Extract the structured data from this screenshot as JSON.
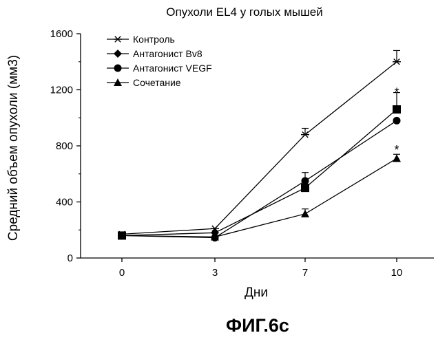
{
  "figure_label": "ФИГ.6с",
  "chart_data": {
    "type": "line",
    "title": "Опухоли EL4 у голых мышей",
    "xlabel": "Дни",
    "ylabel": "Средний объем опухоли (мм3)",
    "x_ticks": [
      0,
      3,
      7,
      10
    ],
    "y_ticks": [
      0,
      400,
      800,
      1200,
      1600
    ],
    "ylim": [
      0,
      1600
    ],
    "grid": false,
    "legend_position": "top-left",
    "series": [
      {
        "name": "Контроль",
        "marker": "asterisk",
        "points": [
          {
            "x": 0,
            "y": 170
          },
          {
            "x": 3,
            "y": 210
          },
          {
            "x": 7,
            "y": 880,
            "err": 45
          },
          {
            "x": 10,
            "y": 1400,
            "err": 80
          }
        ]
      },
      {
        "name": "Антагонист Bv8",
        "marker": "diamond",
        "points": [
          {
            "x": 0,
            "y": 160
          },
          {
            "x": 3,
            "y": 180
          },
          {
            "x": 7,
            "y": 500
          },
          {
            "x": 10,
            "y": 1060,
            "err": 120
          }
        ]
      },
      {
        "name": "Антагонист VEGF",
        "marker": "circle",
        "points": [
          {
            "x": 0,
            "y": 160
          },
          {
            "x": 3,
            "y": 145
          },
          {
            "x": 7,
            "y": 550,
            "err": 60
          },
          {
            "x": 10,
            "y": 980
          }
        ]
      },
      {
        "name": "Сочетание",
        "marker": "triangle",
        "points": [
          {
            "x": 0,
            "y": 160
          },
          {
            "x": 3,
            "y": 150
          },
          {
            "x": 7,
            "y": 315,
            "err": 35
          },
          {
            "x": 10,
            "y": 710,
            "err": 30
          }
        ]
      }
    ],
    "annotations": [
      {
        "text": "*",
        "x": 10,
        "y": 1200
      },
      {
        "text": "*",
        "x": 10,
        "y": 790
      }
    ]
  }
}
